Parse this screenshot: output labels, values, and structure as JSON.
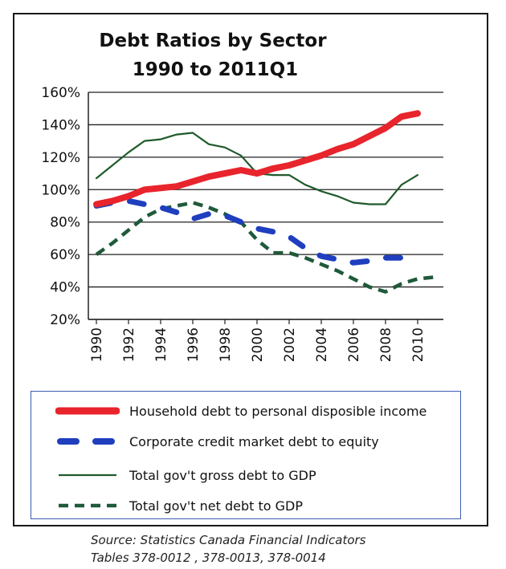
{
  "chart_data": {
    "type": "line",
    "title_lines": [
      "Debt Ratios by Sector",
      "1990 to 2011Q1"
    ],
    "xlabel": "",
    "ylabel": "",
    "ylim": [
      20,
      160
    ],
    "y_ticks": [
      "20%",
      "40%",
      "60%",
      "80%",
      "100%",
      "120%",
      "140%",
      "160%"
    ],
    "x_ticks": [
      "1990",
      "1992",
      "1994",
      "1996",
      "1998",
      "2000",
      "2002",
      "2004",
      "2006",
      "2008",
      "2010"
    ],
    "x_range": [
      1990,
      2011
    ],
    "grid": "horizontal",
    "legend_position": "bottom",
    "series": [
      {
        "name": "Household debt to personal disposible income",
        "color": "#e8242c",
        "style": "solid-thick",
        "x": [
          1990,
          1991,
          1992,
          1993,
          1994,
          1995,
          1996,
          1997,
          1998,
          1999,
          2000,
          2001,
          2002,
          2003,
          2004,
          2005,
          2006,
          2007,
          2008,
          2009,
          2010
        ],
        "y": [
          91,
          93,
          96,
          100,
          101,
          102,
          105,
          108,
          110,
          112,
          110,
          113,
          115,
          118,
          121,
          125,
          128,
          133,
          138,
          145,
          147
        ]
      },
      {
        "name": "Corporate credit market debt to equity",
        "color": "#1f3fbf",
        "style": "dashed-thick",
        "x": [
          1990,
          1991,
          1992,
          1993,
          1994,
          1995,
          1996,
          1997,
          1998,
          1999,
          2000,
          2001,
          2002,
          2003,
          2004,
          2005,
          2006,
          2007,
          2008,
          2009,
          2010
        ],
        "y": [
          90,
          92,
          93,
          91,
          89,
          86,
          82,
          85,
          84,
          80,
          76,
          74,
          71,
          64,
          59,
          57,
          55,
          56,
          58,
          58,
          56
        ]
      },
      {
        "name": "Total gov't gross debt to GDP",
        "color": "#1f5a2a",
        "style": "solid-thin",
        "x": [
          1990,
          1991,
          1992,
          1993,
          1994,
          1995,
          1996,
          1997,
          1998,
          1999,
          2000,
          2001,
          2002,
          2003,
          2004,
          2005,
          2006,
          2007,
          2008,
          2009,
          2010
        ],
        "y": [
          107,
          115,
          123,
          130,
          131,
          134,
          135,
          128,
          126,
          121,
          110,
          109,
          109,
          103,
          99,
          96,
          92,
          91,
          91,
          103,
          109
        ]
      },
      {
        "name": "Total gov't net debt to GDP",
        "color": "#1f5a3a",
        "style": "dashed-medium",
        "x": [
          1990,
          1991,
          1992,
          1993,
          1994,
          1995,
          1996,
          1997,
          1998,
          1999,
          2000,
          2001,
          2002,
          2003,
          2004,
          2005,
          2006,
          2007,
          2008,
          2009,
          2010,
          2011
        ],
        "y": [
          60,
          67,
          75,
          83,
          88,
          90,
          92,
          89,
          85,
          80,
          69,
          61,
          61,
          58,
          54,
          50,
          45,
          40,
          37,
          42,
          45,
          46
        ]
      }
    ]
  },
  "source": {
    "line1": "Source: Statistics Canada Financial Indicators",
    "line2": "Tables  378-0012 , 378-0013, 378-0014"
  }
}
